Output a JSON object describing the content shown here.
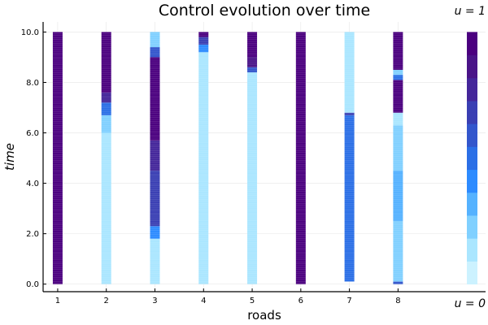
{
  "chart_data": {
    "type": "heatmap",
    "title": "Control evolution over time",
    "xlabel": "roads",
    "ylabel": "time",
    "x_ticks": [
      "1",
      "2",
      "3",
      "4",
      "5",
      "6",
      "7",
      "8"
    ],
    "y_ticks": [
      "0.0",
      "2.0",
      "4.0",
      "6.0",
      "8.0",
      "10.0"
    ],
    "xlim": [
      0.7,
      9.8
    ],
    "ylim": [
      -0.3,
      10.4
    ],
    "time_range": [
      0,
      10
    ],
    "grid": true,
    "colorbar": {
      "min": 0,
      "max": 1,
      "min_label": "u = 0",
      "max_label": "u = 1"
    },
    "colormap": [
      "#ccf2ff",
      "#aae6ff",
      "#80d0ff",
      "#55b2ff",
      "#2d8bff",
      "#2b6fe6",
      "#3356cc",
      "#3a3fb3",
      "#44269a",
      "#4a1488",
      "#4b007f"
    ],
    "series": [
      {
        "road": 1,
        "segments": [
          {
            "from": 0,
            "to": 10,
            "value": 1
          }
        ]
      },
      {
        "road": 2,
        "segments": [
          {
            "from": 0,
            "to": 6.0,
            "value": 0.05
          },
          {
            "from": 6.0,
            "to": 6.7,
            "value": 0.2
          },
          {
            "from": 6.7,
            "to": 7.2,
            "value": 0.5
          },
          {
            "from": 7.2,
            "to": 7.6,
            "value": 0.75
          },
          {
            "from": 7.6,
            "to": 10,
            "value": 1
          }
        ]
      },
      {
        "road": 3,
        "segments": [
          {
            "from": 0,
            "to": 1.8,
            "value": 0.08
          },
          {
            "from": 1.8,
            "to": 2.3,
            "value": 0.4
          },
          {
            "from": 2.3,
            "to": 4.5,
            "value": 0.65
          },
          {
            "from": 4.5,
            "to": 5.7,
            "value": 0.75
          },
          {
            "from": 5.7,
            "to": 9.0,
            "value": 0.95
          },
          {
            "from": 9.0,
            "to": 9.4,
            "value": 0.55
          },
          {
            "from": 9.4,
            "to": 10,
            "value": 0.15
          }
        ]
      },
      {
        "road": 4,
        "segments": [
          {
            "from": 0,
            "to": 9.2,
            "value": 0.05
          },
          {
            "from": 9.2,
            "to": 9.5,
            "value": 0.35
          },
          {
            "from": 9.5,
            "to": 9.8,
            "value": 0.7
          },
          {
            "from": 9.8,
            "to": 10,
            "value": 0.95
          }
        ]
      },
      {
        "road": 5,
        "segments": [
          {
            "from": 0,
            "to": 8.4,
            "value": 0.05
          },
          {
            "from": 8.4,
            "to": 8.6,
            "value": 0.6
          },
          {
            "from": 8.6,
            "to": 9.0,
            "value": 0.85
          },
          {
            "from": 9.0,
            "to": 10,
            "value": 1
          }
        ]
      },
      {
        "road": 6,
        "segments": [
          {
            "from": 0,
            "to": 10,
            "value": 1
          }
        ]
      },
      {
        "road": 7,
        "segments": [
          {
            "from": 0.1,
            "to": 6.7,
            "value": 0.45
          },
          {
            "from": 6.7,
            "to": 6.8,
            "value": 0.7
          },
          {
            "from": 6.8,
            "to": 10,
            "value": 0.05
          }
        ]
      },
      {
        "road": 8,
        "segments": [
          {
            "from": 0,
            "to": 0.1,
            "value": 0.6
          },
          {
            "from": 0.1,
            "to": 2.5,
            "value": 0.2
          },
          {
            "from": 2.5,
            "to": 4.5,
            "value": 0.3
          },
          {
            "from": 4.5,
            "to": 6.3,
            "value": 0.15
          },
          {
            "from": 6.3,
            "to": 6.8,
            "value": 0.05
          },
          {
            "from": 6.8,
            "to": 8.1,
            "value": 0.95
          },
          {
            "from": 8.1,
            "to": 8.3,
            "value": 0.5
          },
          {
            "from": 8.3,
            "to": 8.5,
            "value": 0.2
          },
          {
            "from": 8.5,
            "to": 10,
            "value": 1
          }
        ]
      }
    ]
  }
}
